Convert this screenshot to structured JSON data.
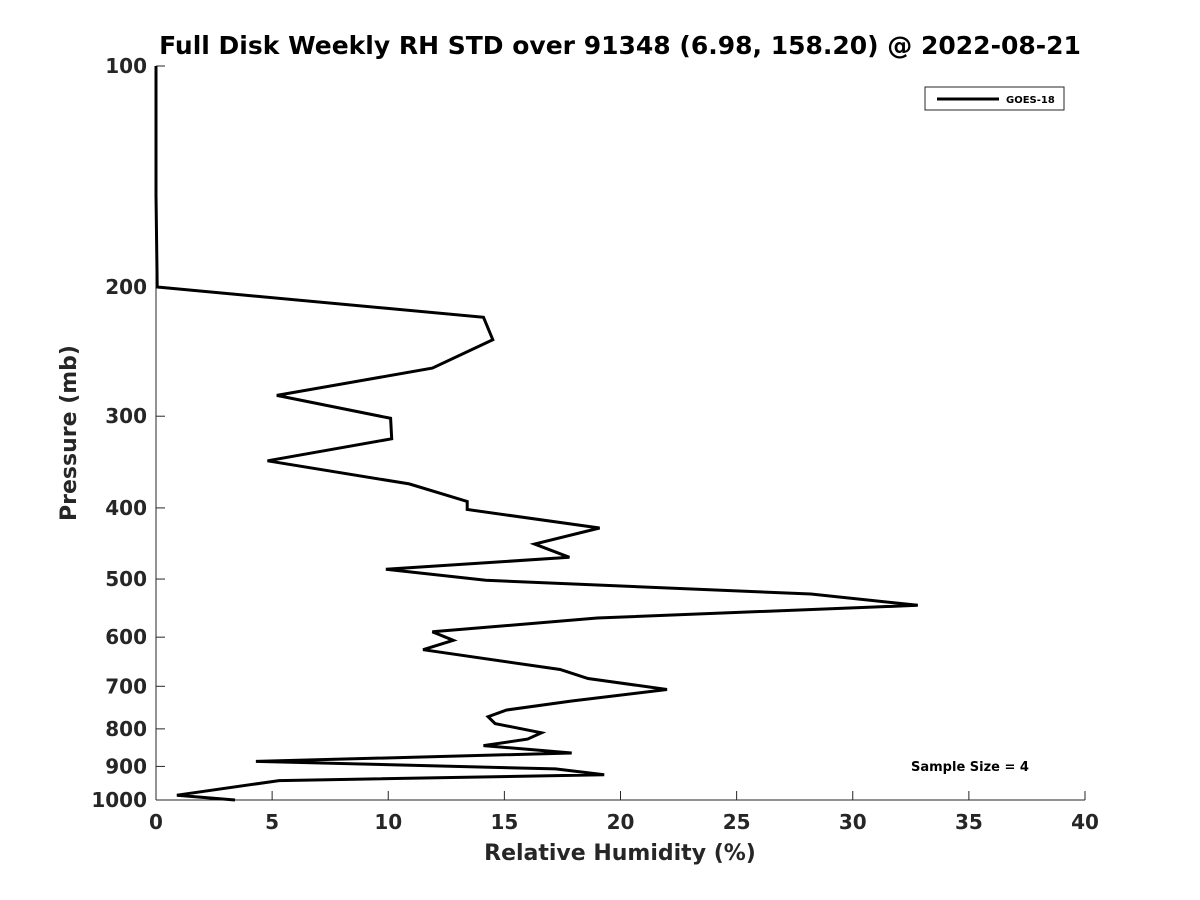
{
  "chart_data": {
    "type": "line",
    "title": "Full Disk Weekly RH STD over 91348 (6.98, 158.20) @ 2022-08-21",
    "xlabel": "Relative Humidity (%)",
    "ylabel": "Pressure (mb)",
    "xlim": [
      0,
      40
    ],
    "ylim": [
      100,
      1000
    ],
    "yscale": "log",
    "y_inverted": true,
    "grid": false,
    "xticks": [
      0,
      5,
      10,
      15,
      20,
      25,
      30,
      35,
      40
    ],
    "yticks": [
      100,
      200,
      300,
      400,
      500,
      600,
      700,
      800,
      900,
      1000
    ],
    "legend_position": "top-right",
    "annotation": "Sample Size = 4",
    "series": [
      {
        "name": "GOES-18",
        "color": "#000000",
        "points": [
          [
            0.0,
            100
          ],
          [
            0.0,
            150
          ],
          [
            0.05,
            200
          ],
          [
            14.1,
            220
          ],
          [
            14.5,
            236
          ],
          [
            11.9,
            258
          ],
          [
            5.2,
            281
          ],
          [
            10.1,
            302
          ],
          [
            10.15,
            322
          ],
          [
            4.8,
            345
          ],
          [
            10.9,
            371
          ],
          [
            13.4,
            392
          ],
          [
            13.4,
            402
          ],
          [
            19.1,
            426
          ],
          [
            16.3,
            448
          ],
          [
            17.8,
            467
          ],
          [
            9.9,
            485
          ],
          [
            14.2,
            502
          ],
          [
            28.2,
            524
          ],
          [
            32.8,
            543
          ],
          [
            19.0,
            565
          ],
          [
            11.9,
            590
          ],
          [
            12.8,
            606
          ],
          [
            11.5,
            624
          ],
          [
            17.4,
            664
          ],
          [
            18.6,
            683
          ],
          [
            22.0,
            707
          ],
          [
            17.9,
            733
          ],
          [
            15.1,
            754
          ],
          [
            14.3,
            770
          ],
          [
            14.6,
            787
          ],
          [
            16.6,
            810
          ],
          [
            16.0,
            826
          ],
          [
            14.1,
            843
          ],
          [
            17.9,
            863
          ],
          [
            4.3,
            886
          ],
          [
            17.2,
            907
          ],
          [
            19.3,
            924
          ],
          [
            5.3,
            941
          ],
          [
            0.9,
            985
          ],
          [
            3.4,
            1000
          ]
        ]
      }
    ]
  }
}
